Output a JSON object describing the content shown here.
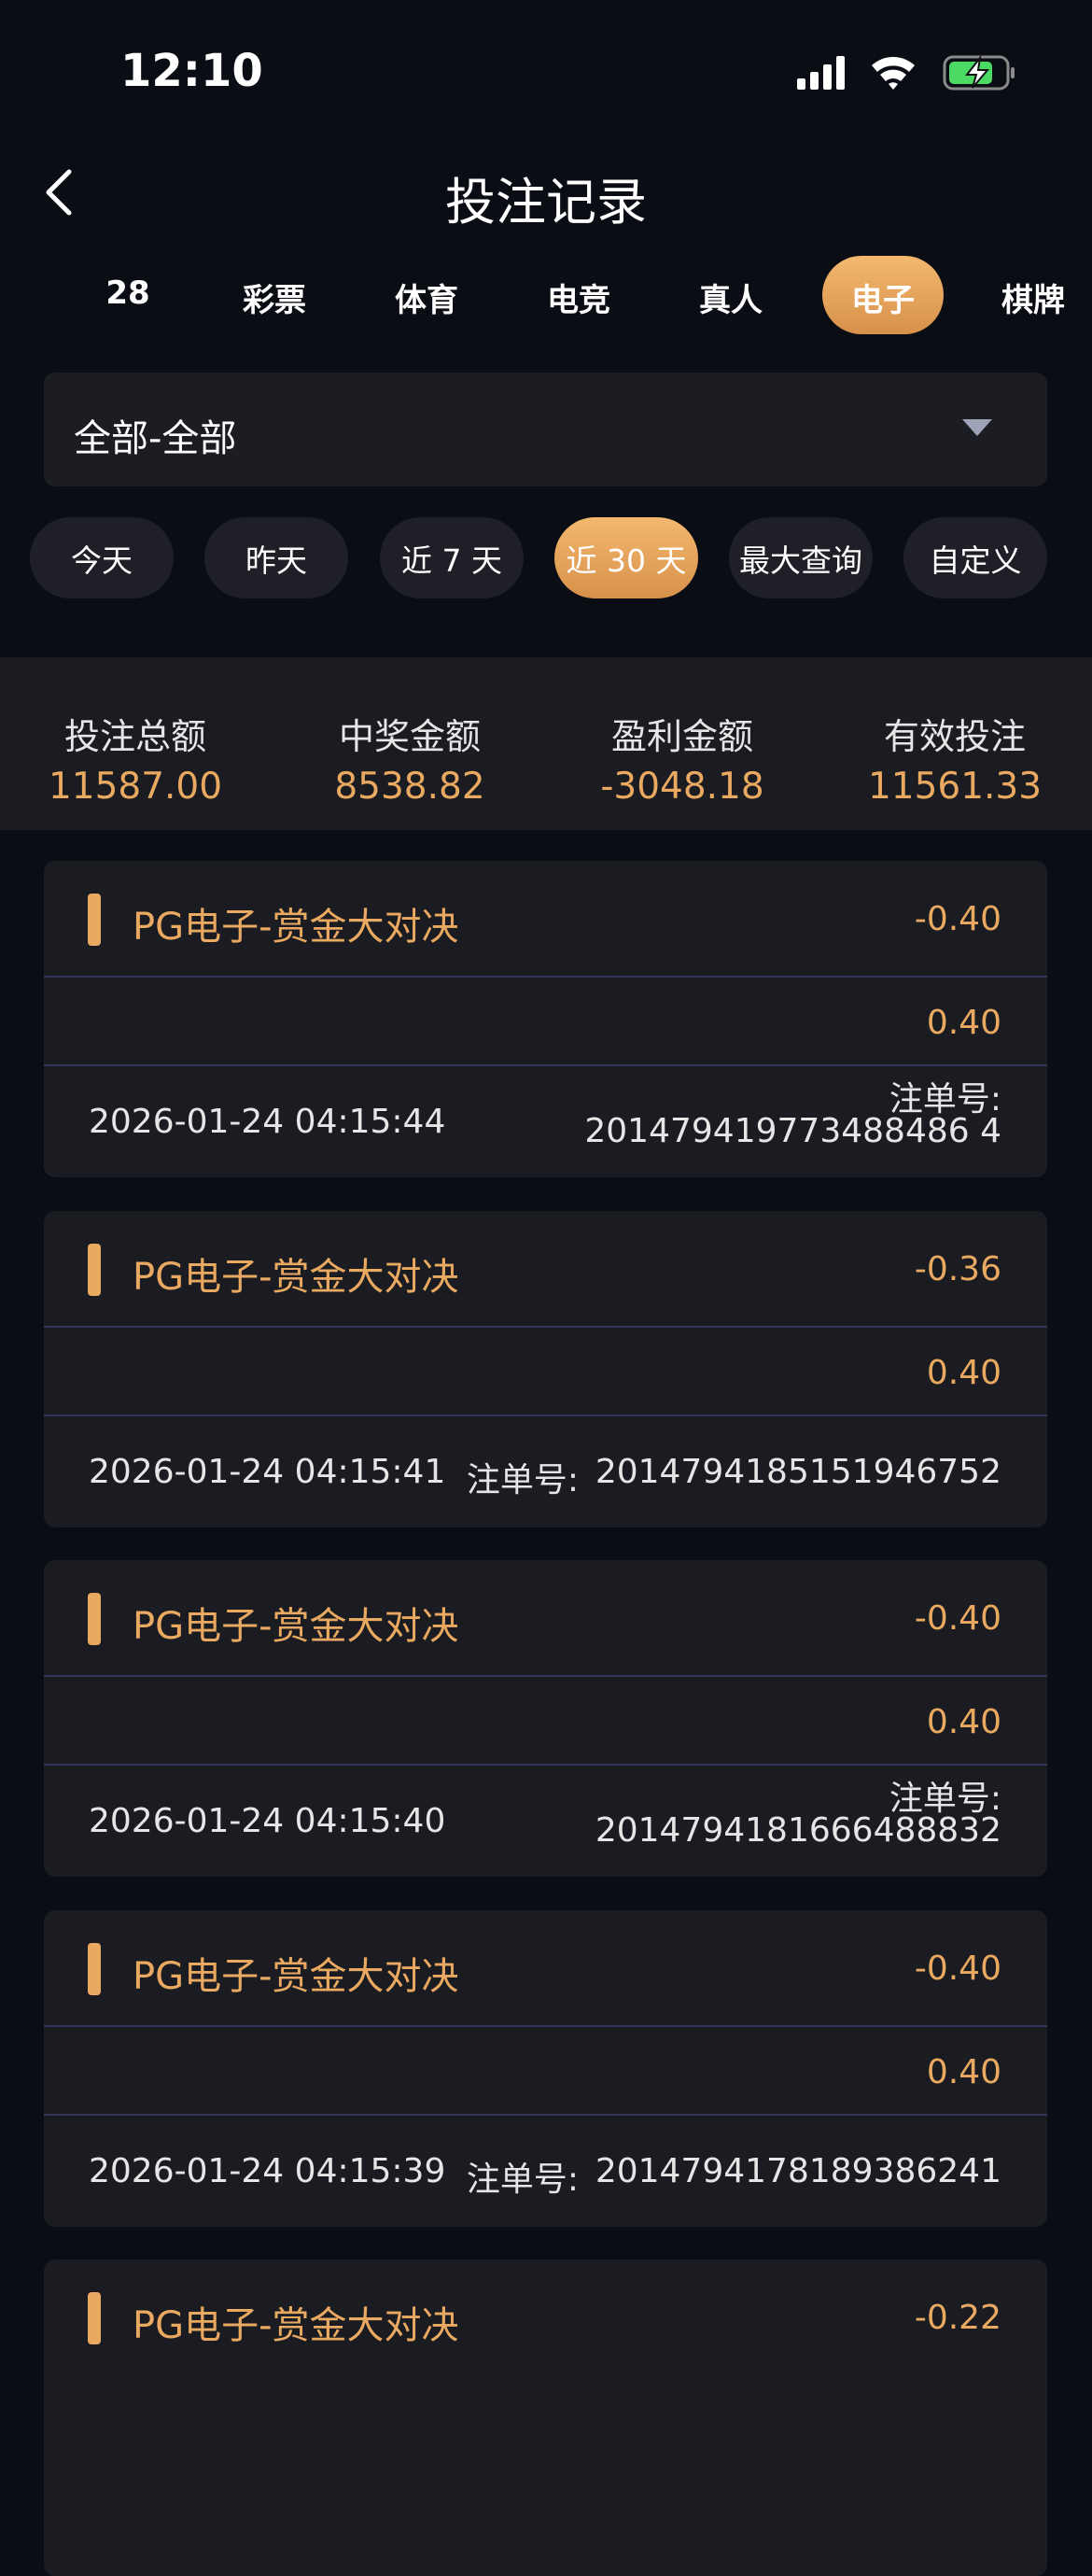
{
  "status_bar": {
    "time": "12:10"
  },
  "header": {
    "title": "投注记录"
  },
  "tabs": [
    "28",
    "彩票",
    "体育",
    "电竞",
    "真人",
    "电子",
    "棋牌"
  ],
  "active_tab": 5,
  "dropdown": {
    "label": "全部-全部"
  },
  "date_filters": [
    "今天",
    "昨天",
    "近 7 天",
    "近 30 天",
    "最大查询",
    "自定义"
  ],
  "active_filter": 3,
  "summary": [
    {
      "label": "投注总额",
      "value": "11587.00"
    },
    {
      "label": "中奖金额",
      "value": "8538.82"
    },
    {
      "label": "盈利金额",
      "value": "-3048.18"
    },
    {
      "label": "有效投注",
      "value": "11561.33"
    }
  ],
  "records": [
    {
      "title": "PG电子-赏金大对决",
      "profit": "-0.40",
      "bet": "0.40",
      "time": "2026-01-24 04:15:44",
      "order_label": "注单号:",
      "order_no": "201479419773488486 4"
    },
    {
      "title": "PG电子-赏金大对决",
      "profit": "-0.36",
      "bet": "0.40",
      "time": "2026-01-24 04:15:41",
      "order_label": "注单号:",
      "order_no": "2014794185151946752"
    },
    {
      "title": "PG电子-赏金大对决",
      "profit": "-0.40",
      "bet": "0.40",
      "time": "2026-01-24 04:15:40",
      "order_label": "注单号:",
      "order_no": "2014794181666488832"
    },
    {
      "title": "PG电子-赏金大对决",
      "profit": "-0.40",
      "bet": "0.40",
      "time": "2026-01-24 04:15:39",
      "order_label": "注单号:",
      "order_no": "2014794178189386241"
    },
    {
      "title": "PG电子-赏金大对决",
      "profit": "-0.22"
    }
  ]
}
